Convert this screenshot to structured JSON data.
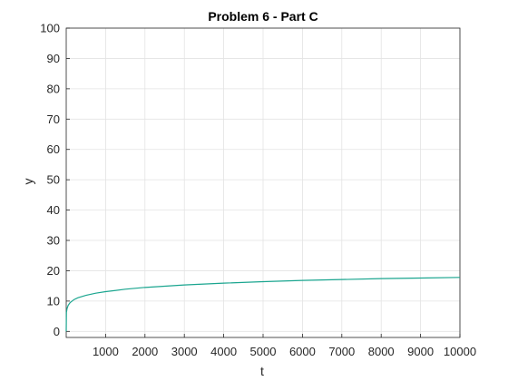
{
  "chart_data": {
    "type": "line",
    "title": "Problem 6 - Part C",
    "xlabel": "t",
    "ylabel": "y",
    "xlim": [
      0,
      10000
    ],
    "ylim": [
      -2,
      100
    ],
    "xticks": [
      1000,
      2000,
      3000,
      4000,
      5000,
      6000,
      7000,
      8000,
      9000,
      10000
    ],
    "yticks": [
      0,
      10,
      20,
      30,
      40,
      50,
      60,
      70,
      80,
      90,
      100
    ],
    "grid": true,
    "legend": "none",
    "series": [
      {
        "color": "#1aa58f",
        "x": [
          0,
          5,
          20,
          50,
          100,
          200,
          300,
          500,
          750,
          1000,
          1500,
          2000,
          2500,
          3000,
          3500,
          4000,
          5000,
          6000,
          7000,
          8000,
          9000,
          10000
        ],
        "y": [
          0,
          6.2,
          7.5,
          8.6,
          9.5,
          10.5,
          11.1,
          11.9,
          12.6,
          13.1,
          13.9,
          14.5,
          14.9,
          15.3,
          15.6,
          15.9,
          16.4,
          16.8,
          17.1,
          17.4,
          17.6,
          17.8
        ]
      }
    ]
  }
}
